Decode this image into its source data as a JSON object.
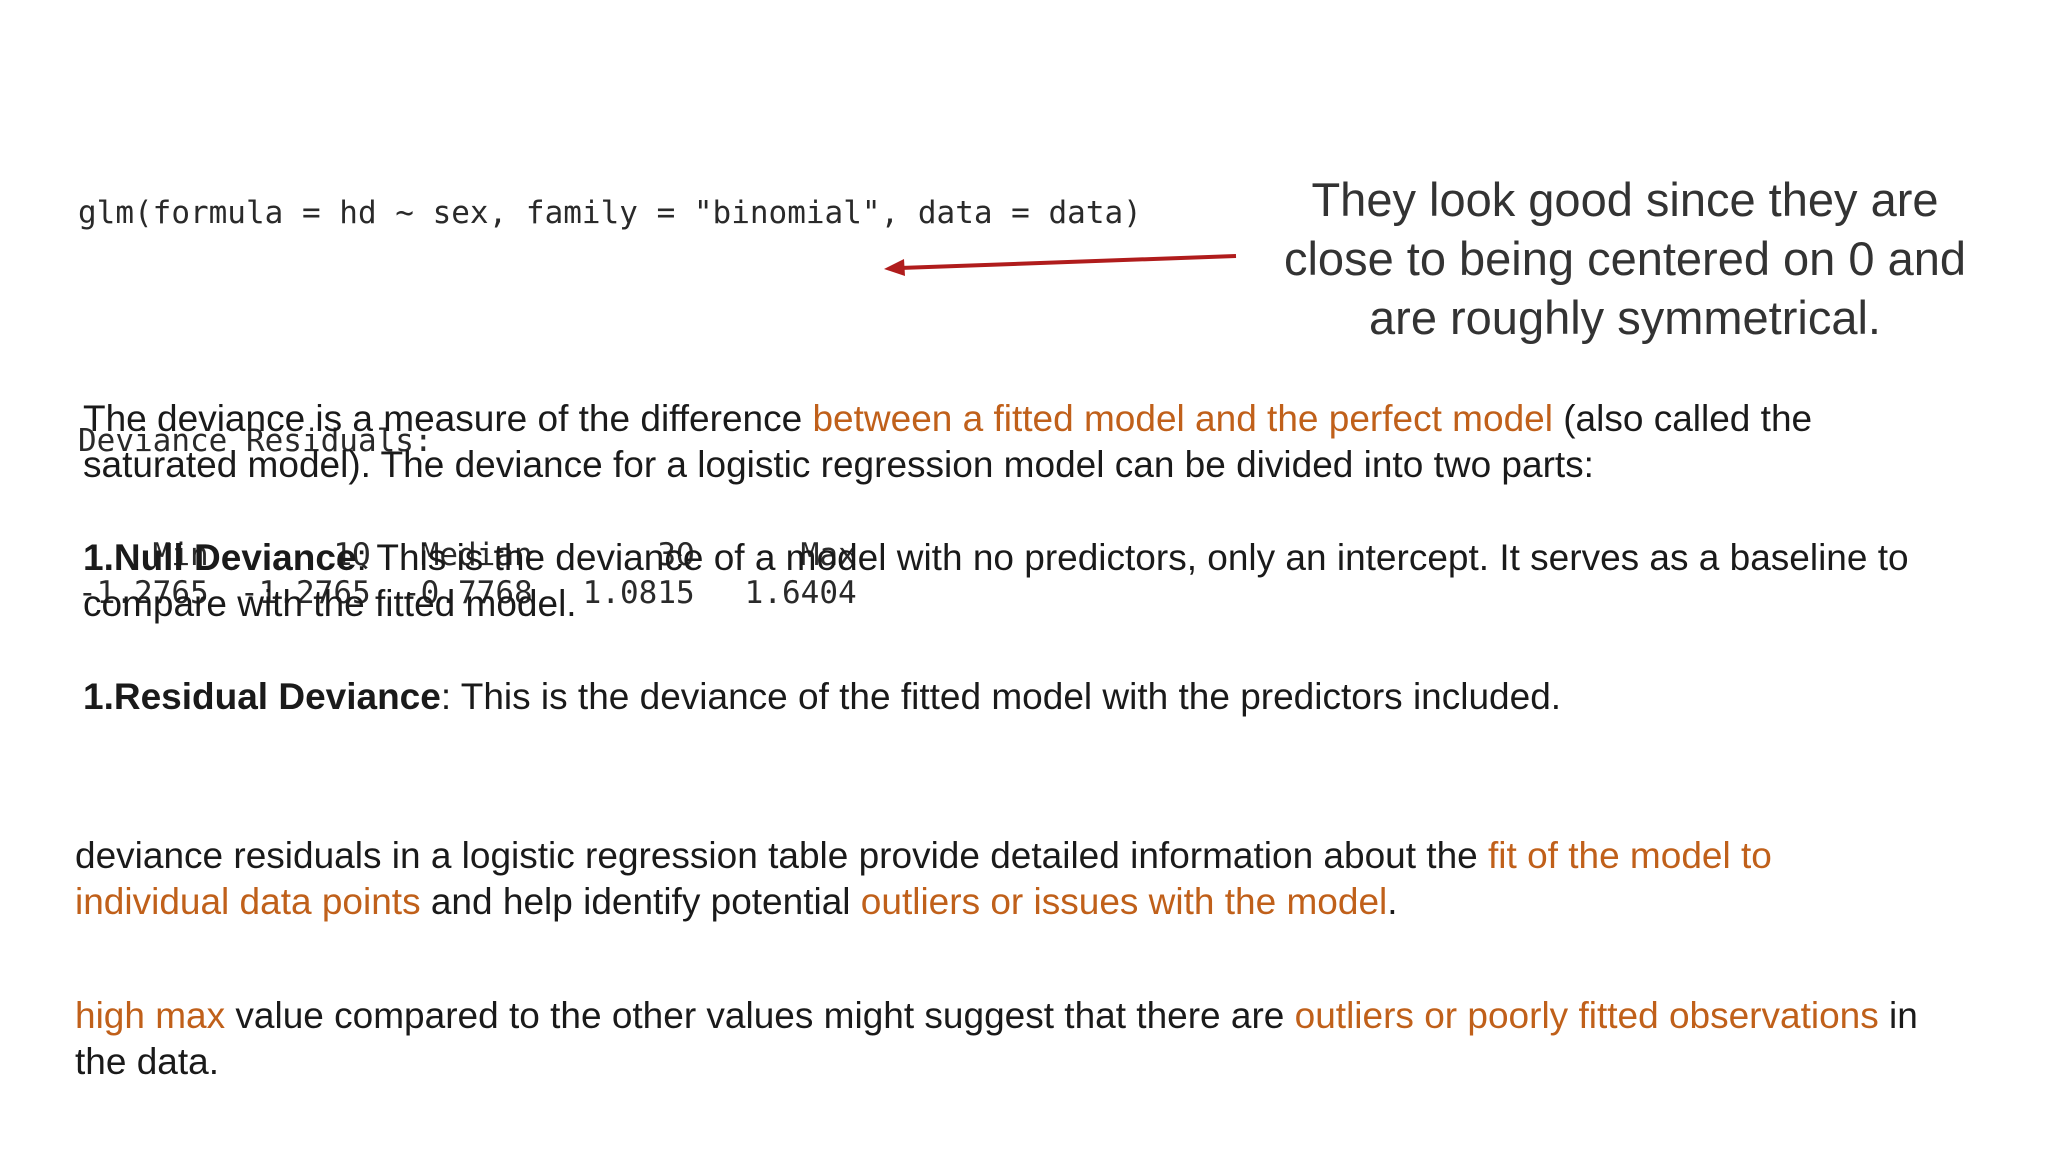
{
  "code": {
    "formula_line": "glm(formula = hd ~ sex, family = \"binomial\", data = data)",
    "heading": "Deviance Residuals:",
    "headers": [
      "Min",
      "1Q",
      "Median",
      "3Q",
      "Max"
    ],
    "values": [
      "-1.2765",
      "-1.2765",
      "-0.7768",
      "1.0815",
      "1.6404"
    ]
  },
  "arrow": {
    "color": "#b01c1c"
  },
  "callout": {
    "line1": "They look good since they are",
    "line2": "close to being centered on 0 and",
    "line3": "are roughly symmetrical."
  },
  "colors": {
    "highlight": "#c0601a",
    "text": "#1a1a1a"
  },
  "paragraphs": {
    "deviance": {
      "part1": "The deviance is a measure of the difference ",
      "highlight1": "between a fitted model and the perfect model",
      "part2": " (also called the saturated model). The deviance for a logistic regression model can be divided into two parts:"
    },
    "null_deviance": {
      "label": "1.Null Deviance",
      "text": ": This is the deviance of a model with no predictors, only an intercept. It serves as a baseline to compare with the fitted model."
    },
    "residual_deviance": {
      "label": "1.Residual Deviance",
      "text": ": This is the deviance of the fitted model with the predictors included."
    },
    "residuals_info": {
      "part1": "deviance residuals in a logistic regression table provide detailed information about the ",
      "highlight1": "fit of the model to individual data points",
      "part2": " and help identify potential ",
      "highlight2": "outliers or issues with the model",
      "part3": "."
    },
    "high_max": {
      "highlight1": "high max",
      "part1": " value compared to the other values might suggest that there are ",
      "highlight2": "outliers or poorly fitted observations",
      "part2": " in the data."
    }
  }
}
